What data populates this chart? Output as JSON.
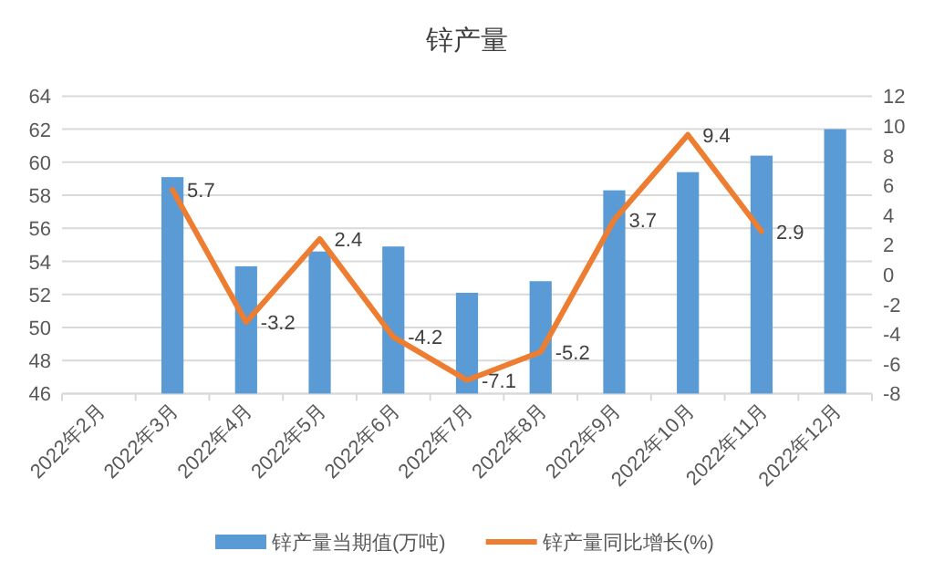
{
  "chart_data": {
    "type": "bar",
    "title": "锌产量",
    "categories": [
      "2022年2月",
      "2022年3月",
      "2022年4月",
      "2022年5月",
      "2022年6月",
      "2022年7月",
      "2022年8月",
      "2022年9月",
      "2022年10月",
      "2022年11月",
      "2022年12月"
    ],
    "series": [
      {
        "name": "锌产量当期值(万吨)",
        "color": "#5b9bd5",
        "values": [
          null,
          59.1,
          53.7,
          54.6,
          54.9,
          52.1,
          52.8,
          58.3,
          59.4,
          60.4,
          62.0
        ]
      },
      {
        "name": "锌产量同比增长(%)",
        "type": "line",
        "axis": "y2",
        "color": "#ed7d31",
        "values": [
          null,
          5.7,
          -3.2,
          2.4,
          -4.2,
          -7.1,
          -5.2,
          3.7,
          9.4,
          2.9,
          null
        ],
        "value_labels": [
          null,
          "5.7",
          "-3.2",
          "2.4",
          "-4.2",
          "-7.1",
          "-5.2",
          "3.7",
          "9.4",
          "2.9",
          null
        ]
      }
    ],
    "ylim": [
      46,
      64
    ],
    "yticks": [
      46,
      48,
      50,
      52,
      54,
      56,
      58,
      60,
      62,
      64
    ],
    "y2lim": [
      -8,
      12
    ],
    "y2ticks": [
      -8,
      -6,
      -4,
      -2,
      0,
      2,
      4,
      6,
      8,
      10,
      12
    ],
    "grid": "y",
    "legend": "bottom"
  }
}
